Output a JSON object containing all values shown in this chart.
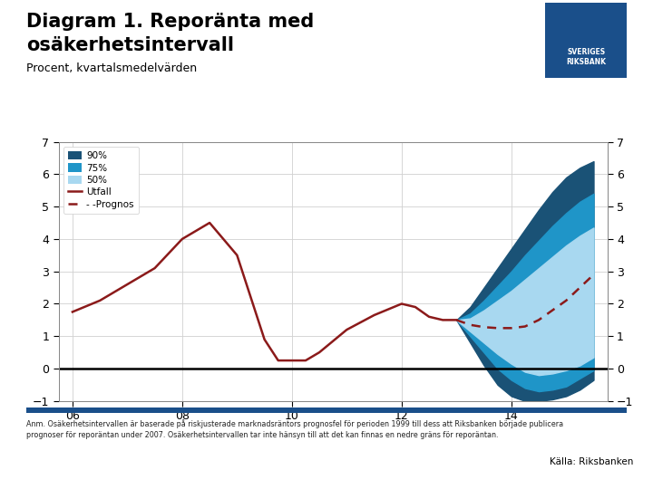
{
  "title_line1": "Diagram 1. Reporänta med",
  "title_line2": "osäkerhetsintervall",
  "subtitle": "Procent, kvartalsmedelvärden",
  "footnote": "Anm. Osäkerhetsintervallen är baserade på riskjusterade marknadsräntors prognosfel för perioden 1999 till dess att Riksbanken började publicera\nprognoser för reporäntan under 2007. Osäkerhetsintervallen tar inte hänsyn till att det kan finnas en nedre gräns för reporäntan.",
  "source": "Källa: Riksbanken",
  "ylim": [
    -1,
    7
  ],
  "yticks": [
    -1,
    0,
    1,
    2,
    3,
    4,
    5,
    6,
    7
  ],
  "background_color": "#ffffff",
  "plot_bg_color": "#ffffff",
  "color_90": "#1a5276",
  "color_75": "#1f95c8",
  "color_50": "#a8d8f0",
  "color_utfall": "#8b1a1a",
  "color_logo_bg": "#1a4f8a",
  "color_separator": "#1a4f8a",
  "utfall_x": [
    6.0,
    6.5,
    7.0,
    7.5,
    8.0,
    8.25,
    8.5,
    9.0,
    9.5,
    9.75,
    10.0,
    10.25,
    10.5,
    11.0,
    11.5,
    12.0,
    12.25,
    12.5,
    12.75,
    13.0
  ],
  "utfall_y": [
    1.75,
    2.1,
    2.6,
    3.1,
    4.0,
    4.25,
    4.5,
    3.5,
    0.9,
    0.25,
    0.25,
    0.25,
    0.5,
    1.2,
    1.65,
    2.0,
    1.9,
    1.6,
    1.5,
    1.5
  ],
  "prognos_x": [
    13.0,
    13.25,
    13.5,
    13.75,
    14.0,
    14.25,
    14.5,
    14.75,
    15.0,
    15.25,
    15.5
  ],
  "prognos_y": [
    1.5,
    1.35,
    1.28,
    1.25,
    1.25,
    1.3,
    1.5,
    1.8,
    2.1,
    2.5,
    2.9
  ],
  "fan_x": [
    13.0,
    13.25,
    13.5,
    13.75,
    14.0,
    14.25,
    14.5,
    14.75,
    15.0,
    15.25,
    15.5
  ],
  "fan_90_upper": [
    1.5,
    1.9,
    2.5,
    3.1,
    3.7,
    4.3,
    4.9,
    5.45,
    5.9,
    6.2,
    6.4
  ],
  "fan_90_lower": [
    1.5,
    0.8,
    0.1,
    -0.5,
    -0.85,
    -1.0,
    -1.0,
    -0.95,
    -0.85,
    -0.65,
    -0.35
  ],
  "fan_75_upper": [
    1.5,
    1.7,
    2.1,
    2.55,
    3.0,
    3.5,
    3.95,
    4.4,
    4.8,
    5.15,
    5.4
  ],
  "fan_75_lower": [
    1.5,
    1.0,
    0.5,
    0.0,
    -0.35,
    -0.6,
    -0.7,
    -0.65,
    -0.55,
    -0.3,
    -0.05
  ],
  "fan_50_upper": [
    1.5,
    1.55,
    1.8,
    2.1,
    2.4,
    2.75,
    3.1,
    3.45,
    3.8,
    4.1,
    4.35
  ],
  "fan_50_lower": [
    1.5,
    1.15,
    0.8,
    0.45,
    0.15,
    -0.1,
    -0.2,
    -0.15,
    -0.05,
    0.1,
    0.35
  ]
}
